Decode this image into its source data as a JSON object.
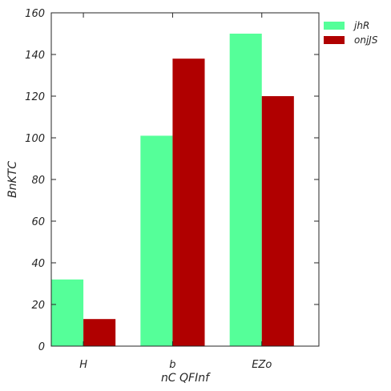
{
  "chart_data": {
    "type": "bar",
    "title": "",
    "xlabel": "nC  QFInf",
    "ylabel": "BnKTC",
    "categories": [
      "H",
      "b",
      "EZo"
    ],
    "series": [
      {
        "name": "jhR",
        "color": "#55ff99",
        "values": [
          32,
          101,
          150
        ]
      },
      {
        "name": "onjJS",
        "color": "#b00000",
        "values": [
          13,
          138,
          120
        ]
      }
    ],
    "ylim": [
      0,
      160
    ],
    "yticks": [
      0,
      20,
      40,
      60,
      80,
      100,
      120,
      140,
      160
    ],
    "grid": false,
    "legend_position": "outside-top-right"
  }
}
